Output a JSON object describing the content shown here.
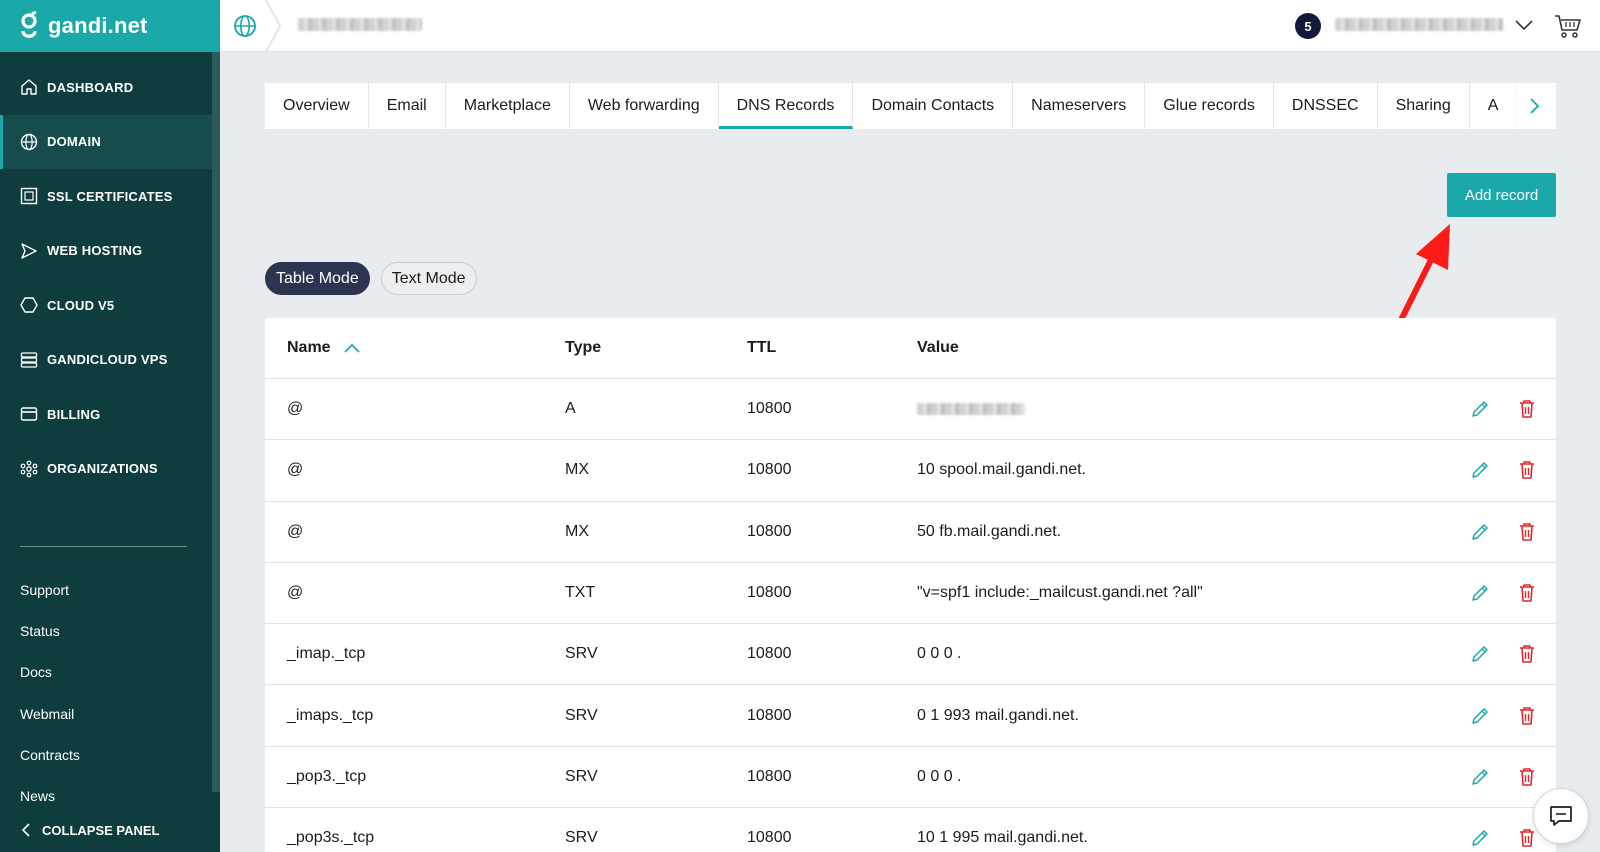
{
  "brand": {
    "name": "gandi.net",
    "accent": "#1ba8a8",
    "sidebar_bg": "#0f3d3e"
  },
  "sidebar": {
    "items": [
      {
        "label": "DASHBOARD",
        "icon": "home-icon"
      },
      {
        "label": "DOMAIN",
        "icon": "globe-icon",
        "active": true
      },
      {
        "label": "SSL CERTIFICATES",
        "icon": "certificate-icon"
      },
      {
        "label": "WEB HOSTING",
        "icon": "send-icon"
      },
      {
        "label": "CLOUD V5",
        "icon": "hexagon-icon"
      },
      {
        "label": "GANDICLOUD VPS",
        "icon": "server-stack-icon"
      },
      {
        "label": "BILLING",
        "icon": "credit-card-icon"
      },
      {
        "label": "ORGANIZATIONS",
        "icon": "network-icon"
      }
    ],
    "links": [
      "Support",
      "Status",
      "Docs",
      "Webmail",
      "Contracts",
      "News"
    ],
    "collapse_label": "COLLAPSE PANEL"
  },
  "topbar": {
    "notification_count": "5"
  },
  "tabs": [
    {
      "label": "Overview"
    },
    {
      "label": "Email"
    },
    {
      "label": "Marketplace"
    },
    {
      "label": "Web forwarding"
    },
    {
      "label": "DNS Records",
      "active": true
    },
    {
      "label": "Domain Contacts"
    },
    {
      "label": "Nameservers"
    },
    {
      "label": "Glue records"
    },
    {
      "label": "DNSSEC"
    },
    {
      "label": "Sharing"
    },
    {
      "label": "A"
    }
  ],
  "actions": {
    "add_record": "Add record"
  },
  "mode_toggle": {
    "table": "Table Mode",
    "text": "Text Mode",
    "selected": "Table Mode"
  },
  "table": {
    "columns": {
      "name": "Name",
      "type": "Type",
      "ttl": "TTL",
      "value": "Value"
    },
    "sort": {
      "column": "Name",
      "direction": "ascending"
    },
    "rows": [
      {
        "name": "@",
        "type": "A",
        "ttl": "10800",
        "value": ""
      },
      {
        "name": "@",
        "type": "MX",
        "ttl": "10800",
        "value": "10 spool.mail.gandi.net."
      },
      {
        "name": "@",
        "type": "MX",
        "ttl": "10800",
        "value": "50 fb.mail.gandi.net."
      },
      {
        "name": "@",
        "type": "TXT",
        "ttl": "10800",
        "value": "\"v=spf1 include:_mailcust.gandi.net ?all\""
      },
      {
        "name": "_imap._tcp",
        "type": "SRV",
        "ttl": "10800",
        "value": "0 0 0 ."
      },
      {
        "name": "_imaps._tcp",
        "type": "SRV",
        "ttl": "10800",
        "value": "0 1 993 mail.gandi.net."
      },
      {
        "name": "_pop3._tcp",
        "type": "SRV",
        "ttl": "10800",
        "value": "0 0 0 ."
      },
      {
        "name": "_pop3s._tcp",
        "type": "SRV",
        "ttl": "10800",
        "value": "10 1 995 mail.gandi.net."
      }
    ]
  }
}
